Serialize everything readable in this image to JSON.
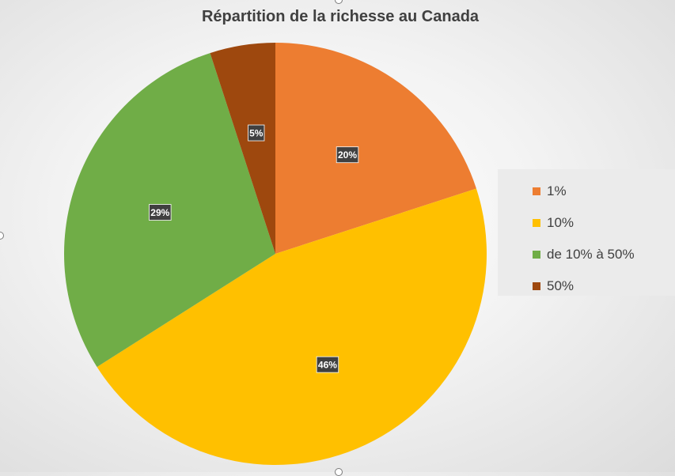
{
  "chart_data": {
    "type": "pie",
    "title": "Répartition de la richesse au Canada",
    "categories": [
      "1%",
      "10%",
      "de 10% à 50%",
      "50%"
    ],
    "values": [
      20,
      46,
      29,
      5
    ],
    "data_labels": [
      "20%",
      "46%",
      "29%",
      "5%"
    ],
    "colors": [
      "#ED7D31",
      "#FFC000",
      "#70AD47",
      "#9E480E"
    ],
    "legend_position": "right"
  }
}
